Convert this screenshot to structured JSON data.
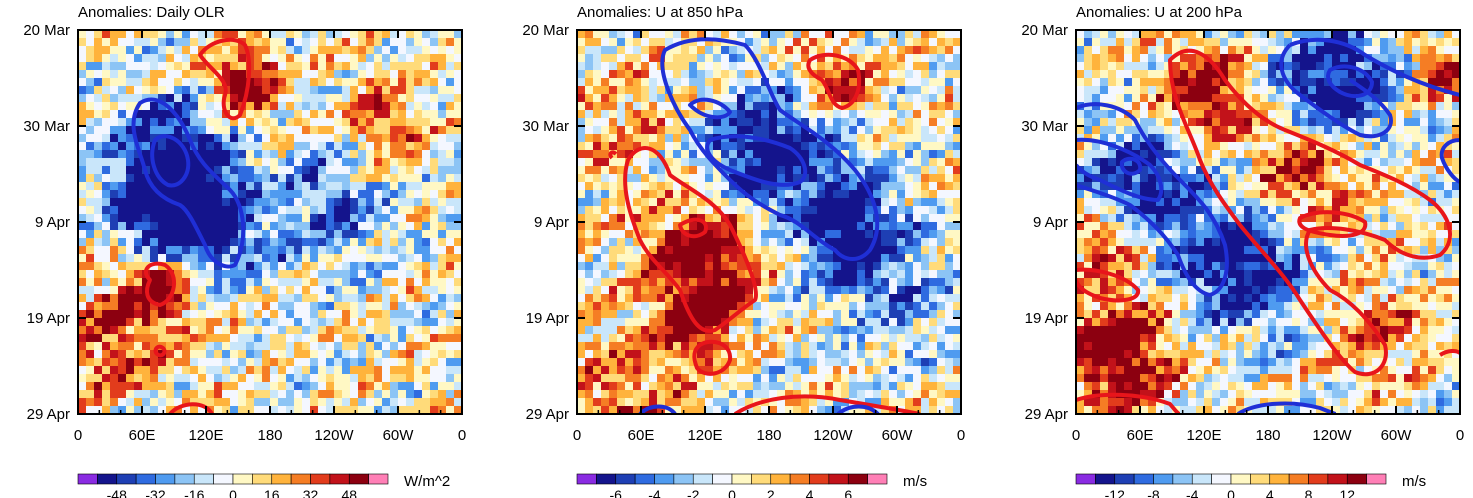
{
  "figure_type": "Hovmoller anomaly panels",
  "chart_data": [
    {
      "type": "heatmap",
      "title": "Anomalies: Daily OLR",
      "units": "W/m^2",
      "x_tick_labels": [
        "0",
        "60E",
        "120E",
        "180",
        "120W",
        "60W",
        "0"
      ],
      "y_tick_labels": [
        "20 Mar",
        "30 Mar",
        "9 Apr",
        "19 Apr",
        "29 Apr"
      ],
      "x_range": [
        0,
        360
      ],
      "y_range_days": [
        0,
        40
      ],
      "colorbar_labels": [
        "-48",
        "-32",
        "-16",
        "0",
        "16",
        "32",
        "48"
      ],
      "contour_positive_color": "#e8151b",
      "contour_negative_color": "#1f2fd6"
    },
    {
      "type": "heatmap",
      "title": "Anomalies: U at 850 hPa",
      "units": "m/s",
      "x_tick_labels": [
        "0",
        "60E",
        "120E",
        "180",
        "120W",
        "60W",
        "0"
      ],
      "y_tick_labels": [
        "20 Mar",
        "30 Mar",
        "9 Apr",
        "19 Apr",
        "29 Apr"
      ],
      "x_range": [
        0,
        360
      ],
      "y_range_days": [
        0,
        40
      ],
      "colorbar_labels": [
        "-6",
        "-4",
        "-2",
        "0",
        "2",
        "4",
        "6"
      ],
      "contour_positive_color": "#e8151b",
      "contour_negative_color": "#1f2fd6"
    },
    {
      "type": "heatmap",
      "title": "Anomalies: U at 200 hPa",
      "units": "m/s",
      "x_tick_labels": [
        "0",
        "60E",
        "120E",
        "180",
        "120W",
        "60W",
        "0"
      ],
      "y_tick_labels": [
        "20 Mar",
        "30 Mar",
        "9 Apr",
        "19 Apr",
        "29 Apr"
      ],
      "x_range": [
        0,
        360
      ],
      "y_range_days": [
        0,
        40
      ],
      "colorbar_labels": [
        "-12",
        "-8",
        "-4",
        "0",
        "4",
        "8",
        "12"
      ],
      "contour_positive_color": "#e8151b",
      "contour_negative_color": "#1f2fd6"
    }
  ],
  "colormap": [
    "#8a2be2",
    "#14148c",
    "#1e3fb4",
    "#2f6be0",
    "#4f9bf0",
    "#8cc4f5",
    "#c9e6fa",
    "#f4f7ff",
    "#fff8c4",
    "#ffdb7a",
    "#ffb33c",
    "#f57d24",
    "#e23c1c",
    "#c2121a",
    "#8c0010",
    "#ff7fb6"
  ]
}
